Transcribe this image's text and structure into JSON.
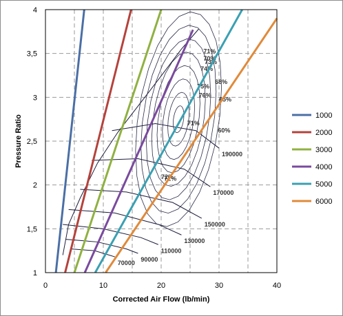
{
  "chart_data": {
    "type": "line",
    "title": "",
    "xlabel": "Corrected Air Flow (lb/min)",
    "ylabel": "Pressure Ratio",
    "xlim": [
      0,
      40
    ],
    "ylim": [
      1,
      4
    ],
    "x_ticks": [
      "0",
      "10",
      "20",
      "30",
      "40"
    ],
    "y_ticks": [
      "1",
      "1,5",
      "2",
      "2,5",
      "3",
      "3,5",
      "4"
    ],
    "grid": true,
    "legend_position": "right",
    "series": [
      {
        "name": "1000",
        "color": "#4a6fa5",
        "points": [
          [
            1.8,
            1.0
          ],
          [
            6.7,
            4.0
          ]
        ]
      },
      {
        "name": "2000",
        "color": "#b5423c",
        "points": [
          [
            3.4,
            1.0
          ],
          [
            14.8,
            4.0
          ]
        ]
      },
      {
        "name": "3000",
        "color": "#8fb140",
        "points": [
          [
            5.0,
            1.0
          ],
          [
            20.0,
            4.0
          ]
        ]
      },
      {
        "name": "4000",
        "color": "#7a4a9e",
        "points": [
          [
            6.8,
            1.0
          ],
          [
            25.5,
            3.77
          ]
        ]
      },
      {
        "name": "5000",
        "color": "#3aa0b2",
        "points": [
          [
            8.6,
            1.0
          ],
          [
            34.0,
            4.0
          ]
        ]
      },
      {
        "name": "6000",
        "color": "#e08a3a",
        "points": [
          [
            10.4,
            1.0
          ],
          [
            40.0,
            3.9
          ]
        ]
      }
    ],
    "speed_lines": [
      {
        "label": "70000",
        "points": [
          [
            4.5,
            1.27
          ],
          [
            8.5,
            1.25
          ],
          [
            11.0,
            1.2
          ],
          [
            12.0,
            1.18
          ]
        ]
      },
      {
        "label": "90000",
        "points": [
          [
            3.5,
            1.38
          ],
          [
            9.0,
            1.35
          ],
          [
            14.0,
            1.27
          ],
          [
            16.0,
            1.22
          ]
        ]
      },
      {
        "label": "110000",
        "points": [
          [
            3.0,
            1.55
          ],
          [
            10.0,
            1.5
          ],
          [
            16.5,
            1.4
          ],
          [
            19.5,
            1.32
          ]
        ]
      },
      {
        "label": "130000",
        "points": [
          [
            4.0,
            1.72
          ],
          [
            12.0,
            1.68
          ],
          [
            19.5,
            1.55
          ],
          [
            23.5,
            1.43
          ]
        ]
      },
      {
        "label": "150000",
        "points": [
          [
            6.0,
            1.95
          ],
          [
            14.0,
            1.92
          ],
          [
            22.0,
            1.8
          ],
          [
            27.0,
            1.62
          ]
        ]
      },
      {
        "label": "170000",
        "points": [
          [
            8.0,
            2.28
          ],
          [
            16.0,
            2.3
          ],
          [
            24.0,
            2.18
          ],
          [
            28.5,
            1.98
          ]
        ]
      },
      {
        "label": "190000",
        "points": [
          [
            11.5,
            2.62
          ],
          [
            19.0,
            2.7
          ],
          [
            26.0,
            2.62
          ],
          [
            30.0,
            2.42
          ]
        ]
      }
    ],
    "efficiency_labels": [
      "60%",
      "65%",
      "68%",
      "70%",
      "71%",
      "72%",
      "73%",
      "74%",
      "75%",
      "76%",
      "71%",
      "72%"
    ]
  },
  "legend": {
    "items": [
      {
        "label": "1000",
        "color": "#4a6fa5"
      },
      {
        "label": "2000",
        "color": "#b5423c"
      },
      {
        "label": "3000",
        "color": "#8fb140"
      },
      {
        "label": "4000",
        "color": "#7a4a9e"
      },
      {
        "label": "5000",
        "color": "#3aa0b2"
      },
      {
        "label": "6000",
        "color": "#e08a3a"
      }
    ]
  }
}
